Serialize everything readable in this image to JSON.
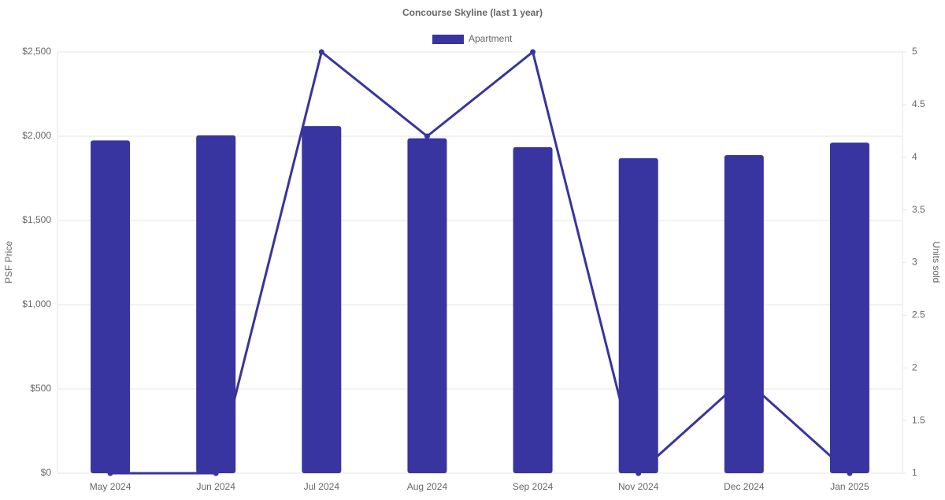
{
  "chart_data": {
    "type": "bar",
    "title": "Concourse Skyline (last 1 year)",
    "categories": [
      "May 2024",
      "Jun 2024",
      "Jul 2024",
      "Aug 2024",
      "Sep 2024",
      "Nov 2024",
      "Dec 2024",
      "Jan 2025"
    ],
    "series": [
      {
        "name": "Apartment",
        "type": "bar",
        "color": "#3834a0",
        "values": [
          1975,
          2005,
          2060,
          1988,
          1935,
          1870,
          1888,
          1962
        ]
      },
      {
        "type": "line",
        "axis": "y2",
        "color": "#3834a0",
        "values": [
          1,
          1,
          5,
          4.2,
          5,
          1,
          1.9,
          1
        ]
      }
    ],
    "y_label": "PSF Price",
    "y2_label": "Units sold",
    "ylim": [
      0,
      2500
    ],
    "yticks": [
      {
        "value": 0,
        "label": "$0"
      },
      {
        "value": 500,
        "label": "$500"
      },
      {
        "value": 1000,
        "label": "$1,000"
      },
      {
        "value": 1500,
        "label": "$1,500"
      },
      {
        "value": 2000,
        "label": "$2,000"
      },
      {
        "value": 2500,
        "label": "$2,500"
      }
    ],
    "y2lim": [
      1,
      5
    ],
    "y2ticks": [
      1,
      1.5,
      2,
      2.5,
      3,
      3.5,
      4,
      4.5,
      5
    ],
    "grid": true
  }
}
